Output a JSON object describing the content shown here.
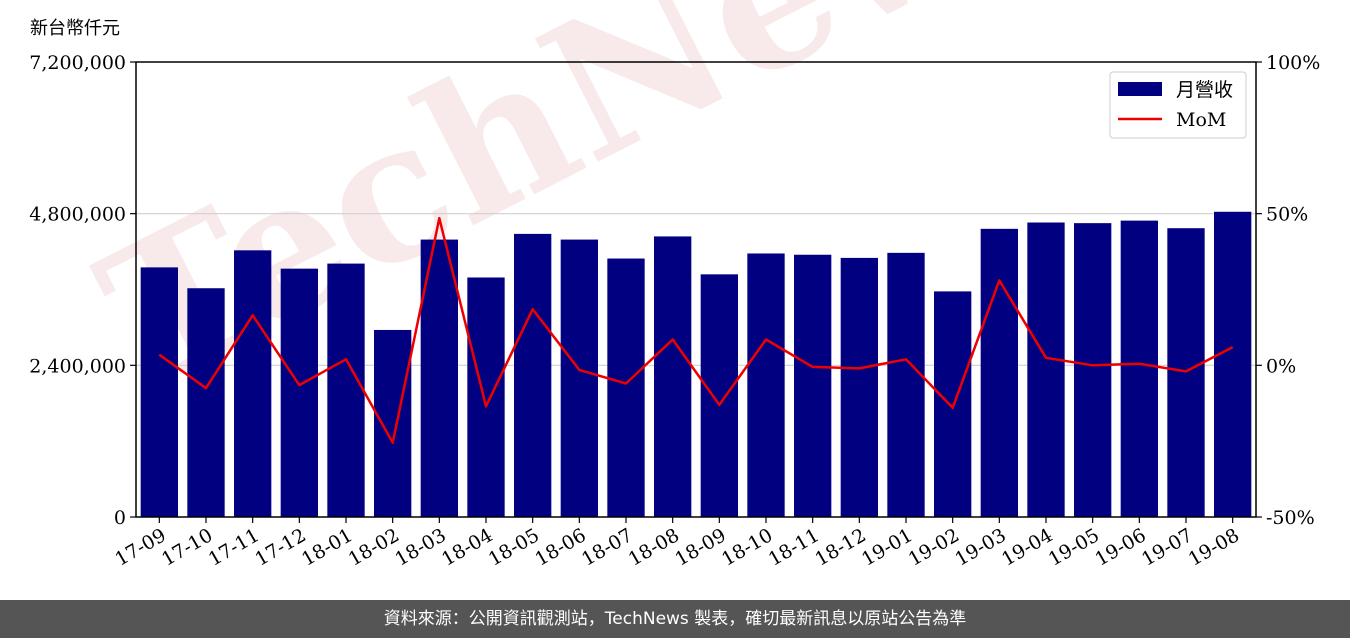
{
  "unit_label": "新台幣仟元",
  "footer_text": "資料來源：公開資訊觀測站，TechNews 製表，確切最新訊息以原站公告為準",
  "watermark": "TechNews",
  "colors": {
    "bar": "#000080",
    "line": "#ee0000",
    "grid": "#d0d0d0",
    "footer_bg": "#555555"
  },
  "chart_data": {
    "type": "bar",
    "categories": [
      "17-09",
      "17-10",
      "17-11",
      "17-12",
      "18-01",
      "18-02",
      "18-03",
      "18-04",
      "18-05",
      "18-06",
      "18-07",
      "18-08",
      "18-09",
      "18-10",
      "18-11",
      "18-12",
      "19-01",
      "19-02",
      "19-03",
      "19-04",
      "19-05",
      "19-06",
      "19-07",
      "19-08"
    ],
    "series": [
      {
        "name": "月營收",
        "axis": "left",
        "type": "bar",
        "values": [
          3950000,
          3620000,
          4220000,
          3930000,
          4010000,
          2960000,
          4390000,
          3790000,
          4480000,
          4390000,
          4090000,
          4440000,
          3840000,
          4170000,
          4150000,
          4100000,
          4180000,
          3570000,
          4560000,
          4660000,
          4650000,
          4690000,
          4570000,
          4830000
        ]
      },
      {
        "name": "MoM",
        "axis": "right",
        "type": "line",
        "values": [
          3.5,
          -7.5,
          16.5,
          -6.5,
          2.0,
          -25.5,
          48.5,
          -13.5,
          18.5,
          -1.5,
          -6.0,
          8.5,
          -13.0,
          8.5,
          -0.5,
          -1.0,
          2.0,
          -14.0,
          28.0,
          2.5,
          0.0,
          0.5,
          -2.0,
          6.0
        ]
      }
    ],
    "y_left": {
      "ylim": [
        0,
        7200000
      ],
      "ticks": [
        "0",
        "2,400,000",
        "4,800,000",
        "7,200,000"
      ],
      "tick_values": [
        0,
        2400000,
        4800000,
        7200000
      ]
    },
    "y_right": {
      "ylim": [
        -50,
        100
      ],
      "ticks": [
        "-50%",
        "0%",
        "50%",
        "100%"
      ],
      "tick_values": [
        -50,
        0,
        50,
        100
      ]
    },
    "grid": "horizontal",
    "legend": {
      "placement": "top-right",
      "entries": [
        "月營收",
        "MoM"
      ]
    }
  }
}
